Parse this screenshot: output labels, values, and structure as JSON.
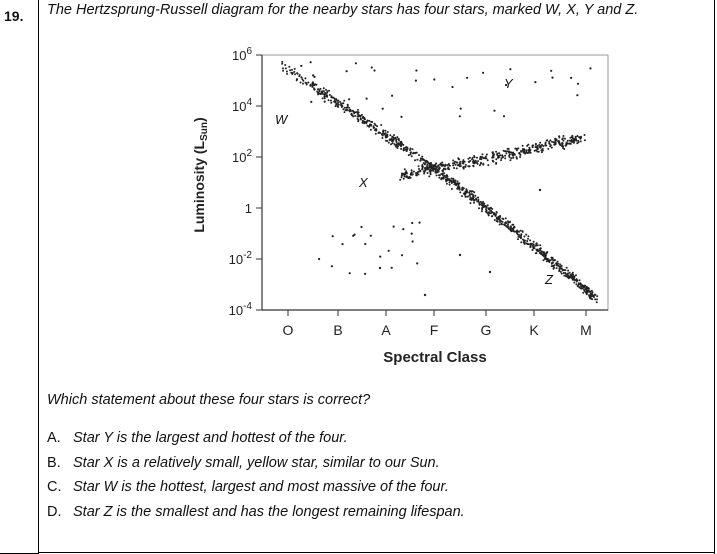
{
  "question": {
    "number": "19.",
    "text": "The Hertzsprung-Russell diagram for the nearby stars has four stars, marked W, X, Y and Z.",
    "prompt": "Which statement about these four stars is correct?",
    "options": [
      {
        "letter": "A.",
        "text": "Star Y is the largest and hottest of the four."
      },
      {
        "letter": "B.",
        "text": "Star X is a relatively small, yellow star, similar to our Sun."
      },
      {
        "letter": "C.",
        "text": "Star W is the hottest, largest and most massive of the four."
      },
      {
        "letter": "D.",
        "text": "Star Z is the smallest and has the longest remaining lifespan."
      }
    ]
  },
  "diagram": {
    "ylabel_main": "Luminosity (L",
    "ylabel_sub": "Sun",
    "ylabel_close": ")",
    "xlabel": "Spectral Class",
    "spectral_classes": [
      "O",
      "B",
      "A",
      "F",
      "G",
      "K",
      "M"
    ],
    "luminosity_ticks": [
      {
        "base": "10",
        "exp": "6"
      },
      {
        "base": "10",
        "exp": "4"
      },
      {
        "base": "10",
        "exp": "2"
      },
      {
        "base": "1",
        "exp": ""
      },
      {
        "base": "10",
        "exp": "-2"
      },
      {
        "base": "10",
        "exp": "-4"
      }
    ],
    "star_labels": [
      "W",
      "X",
      "Y",
      "Z"
    ]
  }
}
